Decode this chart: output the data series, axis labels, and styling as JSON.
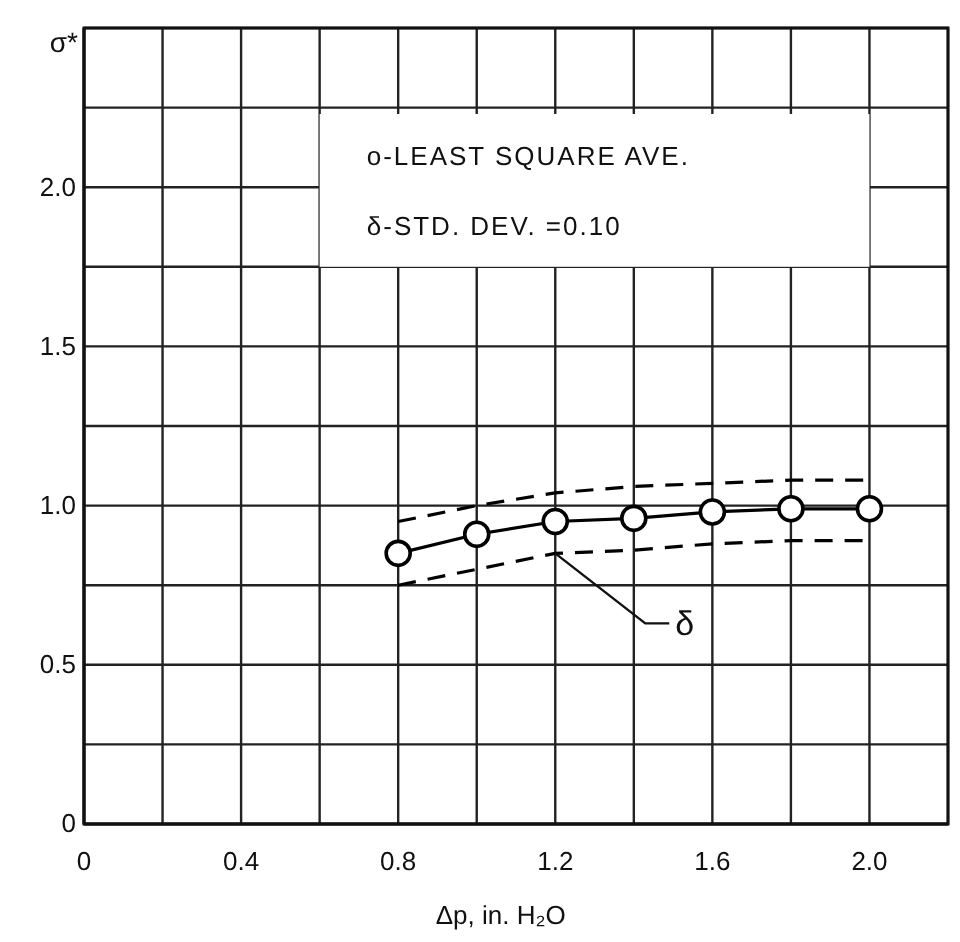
{
  "chart_data": {
    "type": "line",
    "xlabel": "Δp, in. H₂O",
    "ylabel": "σ*",
    "x": [
      0.8,
      1.0,
      1.2,
      1.4,
      1.6,
      1.8,
      2.0
    ],
    "series": [
      {
        "color": "#000000",
        "values": [
          0.85,
          0.91,
          0.95,
          0.96,
          0.98,
          0.99,
          0.99
        ],
        "marker": "circle",
        "line_style": "solid"
      },
      {
        "color": "#000000",
        "values": [
          0.95,
          1.0,
          1.04,
          1.06,
          1.07,
          1.08,
          1.08
        ],
        "marker": "none",
        "line_style": "dashed"
      },
      {
        "color": "#000000",
        "values": [
          0.75,
          0.8,
          0.85,
          0.86,
          0.88,
          0.89,
          0.89
        ],
        "marker": "none",
        "line_style": "dashed"
      }
    ],
    "xlim": [
      0,
      2.2
    ],
    "ylim": [
      0,
      2.5
    ],
    "xticks": [
      0,
      {
        "value": 0.2,
        "label": null
      },
      0.4,
      {
        "value": 0.6,
        "label": null
      },
      0.8,
      {
        "value": 1.0,
        "label": null
      },
      1.2,
      {
        "value": 1.4,
        "label": null
      },
      1.6,
      {
        "value": 1.8,
        "label": null
      },
      {
        "value": 2.0,
        "label": "2.0"
      },
      {
        "value": 2.2,
        "label": null
      }
    ],
    "yticks": [
      0,
      {
        "value": 0.25,
        "label": null
      },
      0.5,
      {
        "value": 0.75,
        "label": null
      },
      {
        "value": 1.0,
        "label": "1.0"
      },
      {
        "value": 1.25,
        "label": null
      },
      1.5,
      {
        "value": 1.75,
        "label": null
      },
      {
        "value": 2.0,
        "label": "2.0"
      },
      {
        "value": 2.25,
        "label": null
      },
      {
        "value": 2.5,
        "label": null
      }
    ],
    "grid": true,
    "annotations": [
      "o-LEAST SQUARE AVE.",
      "δ-STD. DEV. =0.10",
      {
        "text": "δ",
        "x": 1.2,
        "y": 0.85
      }
    ]
  }
}
